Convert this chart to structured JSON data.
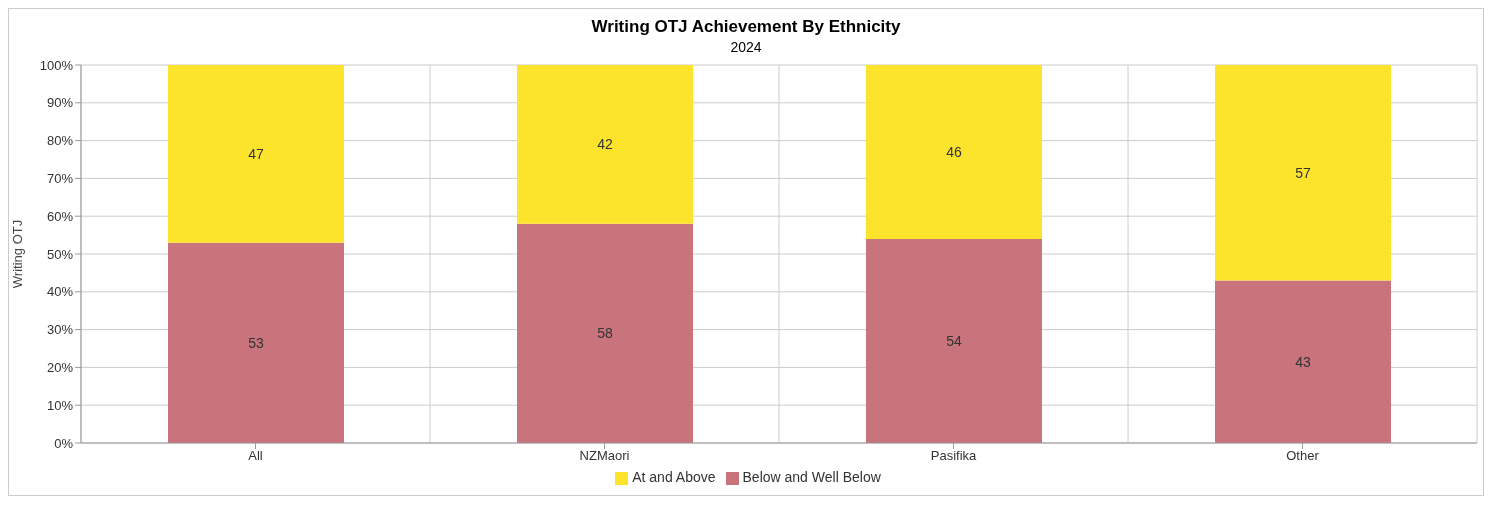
{
  "chart_data": {
    "type": "bar",
    "title": "Writing OTJ Achievement By Ethnicity",
    "subtitle": "2024",
    "ylabel": "Writing OTJ",
    "categories": [
      "All",
      "NZMaori",
      "Pasifika",
      "Other"
    ],
    "series": [
      {
        "name": "Below and Well Below",
        "color": "#c9737d",
        "values": [
          53,
          58,
          54,
          43
        ]
      },
      {
        "name": "At and Above",
        "color": "#fde42c",
        "values": [
          47,
          42,
          46,
          57
        ]
      }
    ],
    "stacked": true,
    "data_labels": true,
    "ylim": [
      0,
      100
    ],
    "yticks": [
      {
        "value": 0,
        "label": "0%"
      },
      {
        "value": 10,
        "label": "10%"
      },
      {
        "value": 20,
        "label": "20%"
      },
      {
        "value": 30,
        "label": "30%"
      },
      {
        "value": 40,
        "label": "40%"
      },
      {
        "value": 50,
        "label": "50%"
      },
      {
        "value": 60,
        "label": "60%"
      },
      {
        "value": 70,
        "label": "70%"
      },
      {
        "value": 80,
        "label": "80%"
      },
      {
        "value": 90,
        "label": "90%"
      },
      {
        "value": 100,
        "label": "100%"
      }
    ],
    "grid": true,
    "legend": "bottom"
  }
}
